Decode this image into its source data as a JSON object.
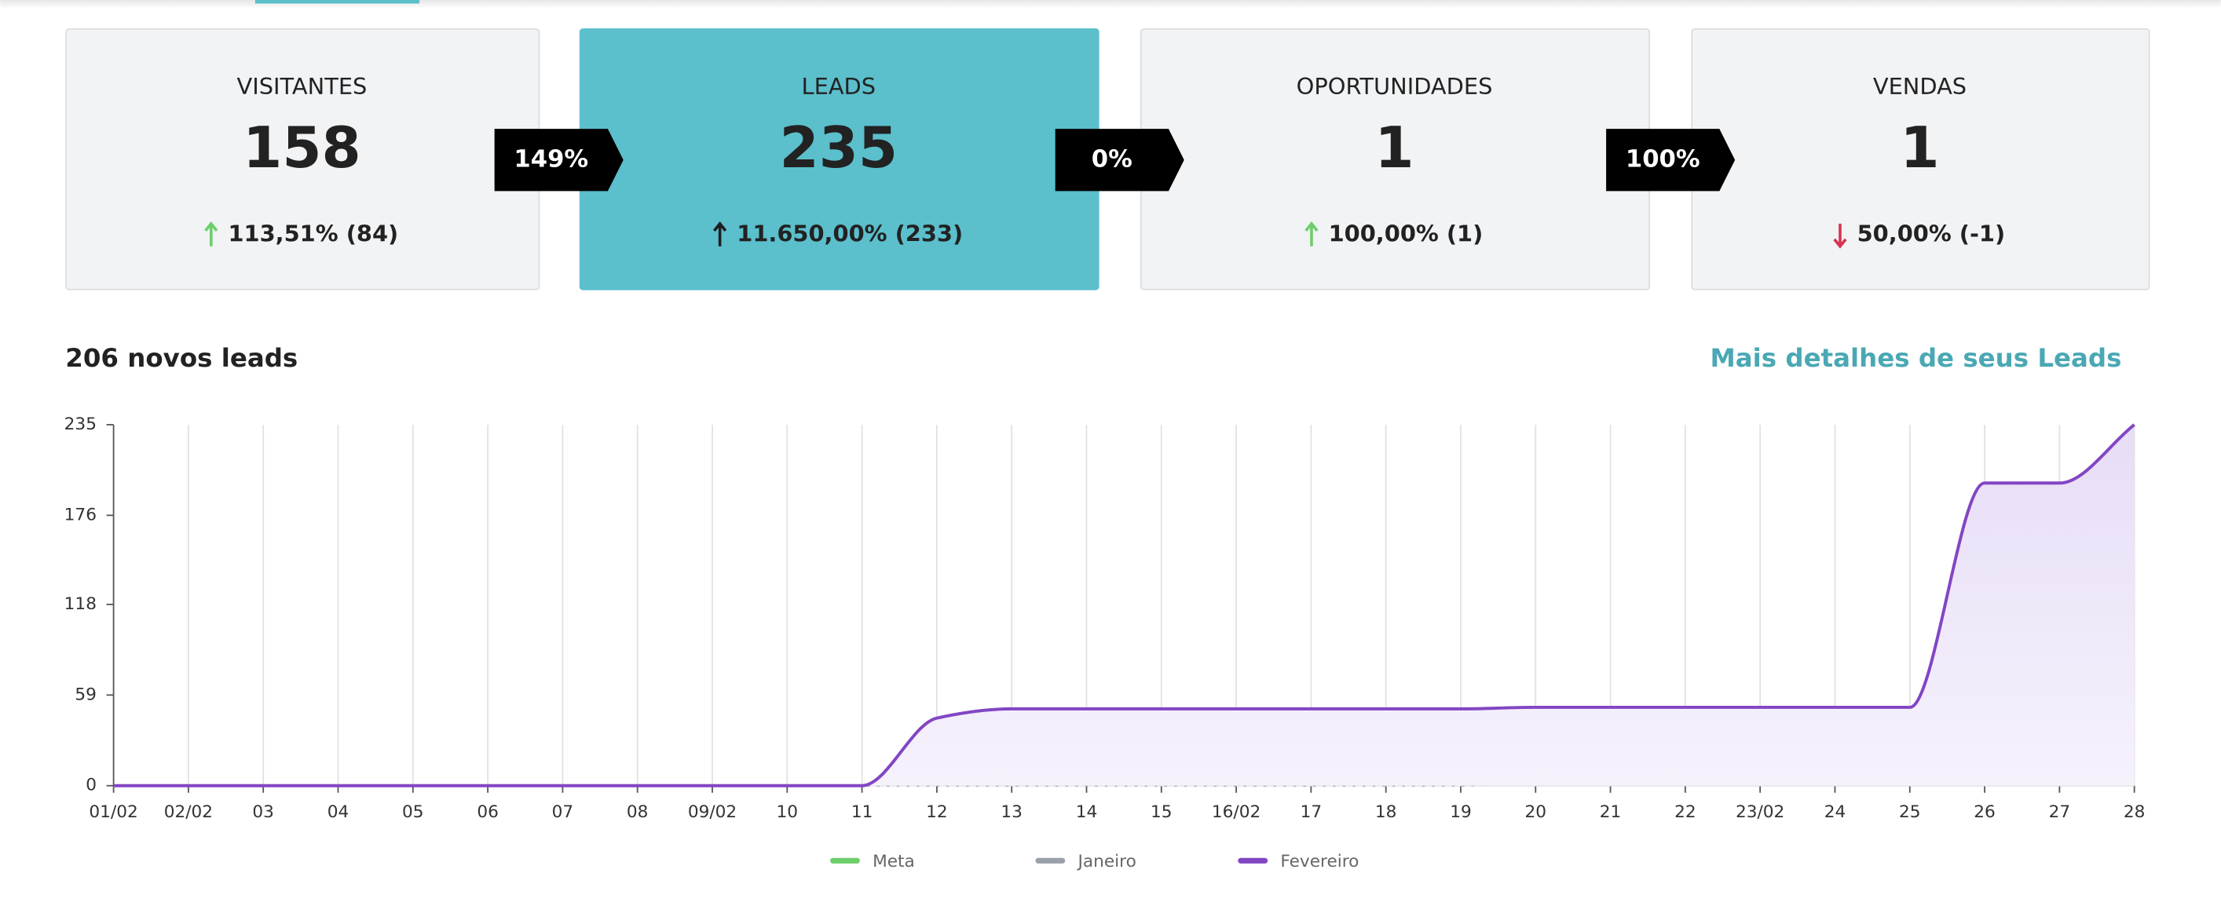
{
  "cards": [
    {
      "title": "VISITANTES",
      "value": "158",
      "change": "113,51% (84)",
      "arrow_color": "#6ccf6a"
    },
    {
      "title": "LEADS",
      "value": "235",
      "change": "11.650,00% (233)",
      "arrow_color": "#1d1d1f"
    },
    {
      "title": "OPORTUNIDADES",
      "value": "1",
      "change": "100,00% (1)",
      "arrow_color": "#6ccf6a"
    },
    {
      "title": "VENDAS",
      "value": "1",
      "change": "50,00% (-1)",
      "arrow_color": "#d6334f"
    }
  ],
  "conversions": [
    "149%",
    "0%",
    "100%"
  ],
  "section": {
    "title": "206 novos leads",
    "link": "Mais detalhes de seus Leads"
  },
  "chart_data": {
    "type": "line",
    "categories": [
      "01/02",
      "02/02",
      "03",
      "04",
      "05",
      "06",
      "07",
      "08",
      "09/02",
      "10",
      "11",
      "12",
      "13",
      "14",
      "15",
      "16/02",
      "17",
      "18",
      "19",
      "20",
      "21",
      "22",
      "23/02",
      "24",
      "25",
      "26",
      "27",
      "28"
    ],
    "series": [
      {
        "name": "Meta",
        "color": "#6ccf6a",
        "values": [
          null,
          null,
          null,
          null,
          null,
          null,
          null,
          null,
          null,
          null,
          null,
          null,
          null,
          null,
          null,
          null,
          null,
          null,
          null,
          null,
          null,
          null,
          null,
          null,
          null,
          null,
          null,
          null
        ]
      },
      {
        "name": "Janeiro",
        "color": "#9aa0a8",
        "values": [
          0,
          0,
          0,
          0,
          0,
          0,
          0,
          0,
          0,
          0,
          0,
          0,
          0,
          0,
          0,
          0,
          0,
          0,
          0,
          2,
          2,
          2,
          2,
          2,
          2,
          2,
          2,
          2
        ]
      },
      {
        "name": "Fevereiro",
        "color": "#8246c4",
        "values": [
          0,
          0,
          0,
          0,
          0,
          0,
          0,
          0,
          0,
          0,
          0,
          44,
          50,
          50,
          50,
          50,
          50,
          50,
          50,
          51,
          51,
          51,
          51,
          51,
          51,
          197,
          197,
          235
        ]
      }
    ],
    "ylim": [
      0,
      235
    ],
    "yticks": [
      0,
      59,
      118,
      176,
      235
    ],
    "grid": true,
    "legend": "bottom"
  }
}
